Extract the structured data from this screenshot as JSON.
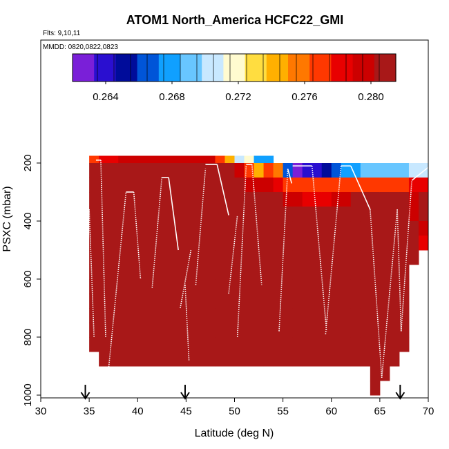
{
  "chart_data": {
    "type": "heatmap",
    "title": "ATOM1 North_America HCFC22_GMI",
    "flights_label": "Flts: 9,10,11",
    "dates_label": "MMDD: 0820,0822,0823",
    "xlabel": "Latitude (deg N)",
    "ylabel": "PSXC (mbar)",
    "xlim": [
      30,
      70
    ],
    "ylim": [
      1000,
      0
    ],
    "x_ticks": [
      "30",
      "35",
      "40",
      "45",
      "50",
      "55",
      "60",
      "65",
      "70"
    ],
    "y_ticks": [
      "200",
      "400",
      "600",
      "800",
      "1000"
    ],
    "colorbar": {
      "range": [
        0.262,
        0.2815
      ],
      "tick_labels": [
        "0.264",
        "0.268",
        "0.272",
        "0.276",
        "0.280"
      ],
      "tick_values": [
        0.264,
        0.268,
        0.272,
        0.276,
        0.28
      ],
      "palette": [
        "#7a1fd8",
        "#2a0fd0",
        "#000c9a",
        "#0055d8",
        "#10a0ff",
        "#68c6ff",
        "#c8e8ff",
        "#fffbd0",
        "#ffdd40",
        "#ffb000",
        "#ff7800",
        "#ff3800",
        "#e80000",
        "#cc0000",
        "#a81818"
      ]
    },
    "grid_pressure_edges": [
      175,
      200,
      250,
      300,
      350,
      400,
      450,
      500,
      550,
      600,
      650,
      700,
      750,
      800,
      850,
      900,
      950,
      1000
    ],
    "bins": [
      {
        "lat": [
          35,
          36
        ],
        "values": [
          0.2775,
          0.2805,
          0.2805,
          0.2805,
          0.2805,
          0.281,
          0.281,
          0.281,
          0.281,
          0.2812,
          0.2812,
          0.2812,
          0.2812,
          0.2812,
          null,
          null,
          null
        ]
      },
      {
        "lat": [
          36,
          38
        ],
        "values": [
          0.2785,
          0.2805,
          0.2805,
          0.2805,
          0.2805,
          0.281,
          0.281,
          0.281,
          0.281,
          0.2812,
          0.2812,
          0.2812,
          0.2812,
          0.2812,
          0.2812,
          null,
          null
        ]
      },
      {
        "lat": [
          38,
          48
        ],
        "values": [
          0.2795,
          0.2805,
          0.2805,
          0.2805,
          0.2805,
          0.2808,
          0.281,
          0.281,
          0.281,
          0.2812,
          0.2812,
          0.2812,
          0.2812,
          0.2812,
          0.2812,
          null,
          null
        ]
      },
      {
        "lat": [
          48,
          49
        ],
        "values": [
          0.2772,
          0.2805,
          0.2805,
          0.2805,
          0.2805,
          0.2808,
          0.281,
          0.281,
          0.281,
          0.2812,
          0.2812,
          0.2812,
          0.2812,
          0.2812,
          0.2812,
          null,
          null
        ]
      },
      {
        "lat": [
          49,
          50
        ],
        "values": [
          0.2745,
          0.2805,
          0.2805,
          0.2805,
          0.2805,
          0.2808,
          0.281,
          0.281,
          0.281,
          0.2812,
          0.2812,
          0.2812,
          0.2812,
          0.2812,
          0.2812,
          null,
          null
        ]
      },
      {
        "lat": [
          50,
          51
        ],
        "values": [
          0.2705,
          0.279,
          0.2805,
          0.2805,
          0.2805,
          0.2808,
          0.281,
          0.281,
          0.281,
          0.2812,
          0.2812,
          0.2812,
          0.2812,
          0.2812,
          0.2812,
          null,
          null
        ]
      },
      {
        "lat": [
          51,
          52
        ],
        "values": [
          0.2715,
          0.2775,
          0.2795,
          0.2805,
          0.2805,
          0.2808,
          0.281,
          0.281,
          0.281,
          0.2812,
          0.2812,
          0.2812,
          0.2812,
          0.2812,
          0.2812,
          null,
          null
        ]
      },
      {
        "lat": [
          52,
          53
        ],
        "values": [
          0.268,
          0.2745,
          0.279,
          0.2805,
          0.2805,
          0.2808,
          0.281,
          0.281,
          0.281,
          0.2812,
          0.2812,
          0.2812,
          0.2812,
          0.2812,
          0.2812,
          null,
          null
        ]
      },
      {
        "lat": [
          53,
          54
        ],
        "values": [
          0.2675,
          0.2765,
          0.279,
          0.2805,
          0.2805,
          0.2808,
          0.281,
          0.281,
          0.281,
          0.2812,
          0.2812,
          0.2812,
          0.2812,
          0.2812,
          0.2812,
          null,
          null
        ]
      },
      {
        "lat": [
          54,
          55
        ],
        "values": [
          null,
          0.2755,
          0.2785,
          0.2805,
          0.2805,
          0.2808,
          0.281,
          0.281,
          0.281,
          0.2812,
          0.2812,
          0.2812,
          0.2812,
          0.2812,
          0.2812,
          null,
          null
        ]
      },
      {
        "lat": [
          55,
          56
        ],
        "values": [
          null,
          0.2665,
          0.2775,
          0.279,
          0.2805,
          0.2808,
          0.281,
          0.281,
          0.281,
          0.2812,
          0.2812,
          0.2812,
          0.2812,
          0.2812,
          0.2812,
          null,
          null
        ]
      },
      {
        "lat": [
          56,
          57
        ],
        "values": [
          null,
          0.2625,
          0.2772,
          0.279,
          0.2805,
          0.2808,
          0.281,
          0.281,
          0.281,
          0.2812,
          0.2812,
          0.2812,
          0.2812,
          0.2812,
          0.2812,
          null,
          null
        ]
      },
      {
        "lat": [
          57,
          58
        ],
        "values": [
          null,
          0.2635,
          0.2772,
          0.2785,
          0.2805,
          0.2808,
          0.281,
          0.281,
          0.281,
          0.2812,
          0.2812,
          0.2812,
          0.2812,
          0.2812,
          0.2812,
          null,
          null
        ]
      },
      {
        "lat": [
          58,
          59
        ],
        "values": [
          null,
          0.2642,
          0.2772,
          0.2785,
          0.2805,
          0.2808,
          0.281,
          0.281,
          0.281,
          0.2812,
          0.2812,
          0.2812,
          0.2812,
          0.2812,
          0.2812,
          null,
          null
        ]
      },
      {
        "lat": [
          59,
          60
        ],
        "values": [
          null,
          0.2655,
          0.2772,
          0.2785,
          0.2805,
          0.2808,
          0.281,
          0.281,
          0.281,
          0.2812,
          0.2812,
          0.2812,
          0.2812,
          0.2812,
          0.2812,
          null,
          null
        ]
      },
      {
        "lat": [
          60,
          61
        ],
        "values": [
          null,
          0.2665,
          0.2772,
          0.279,
          0.2805,
          0.2808,
          0.281,
          0.281,
          0.281,
          0.2812,
          0.2812,
          0.2812,
          0.2812,
          0.2812,
          0.2812,
          null,
          null
        ]
      },
      {
        "lat": [
          61,
          62
        ],
        "values": [
          null,
          0.2675,
          0.2772,
          0.2795,
          0.2812,
          0.2812,
          0.281,
          0.281,
          0.281,
          0.2812,
          0.2812,
          0.2812,
          0.2812,
          0.2812,
          0.2812,
          null,
          null
        ]
      },
      {
        "lat": [
          62,
          63
        ],
        "values": [
          null,
          0.268,
          0.2772,
          0.2812,
          0.2812,
          0.2812,
          0.281,
          0.281,
          0.281,
          0.2812,
          0.2812,
          0.2812,
          0.2812,
          0.2812,
          0.2812,
          null,
          null
        ]
      },
      {
        "lat": [
          63,
          64
        ],
        "values": [
          null,
          0.2685,
          0.2772,
          0.2812,
          0.2812,
          0.2812,
          0.281,
          0.281,
          0.281,
          0.2812,
          0.2812,
          0.2812,
          0.2812,
          0.2812,
          0.2812,
          null,
          null
        ]
      },
      {
        "lat": [
          64,
          65
        ],
        "values": [
          null,
          0.269,
          0.2772,
          0.2812,
          0.2812,
          0.2812,
          0.281,
          0.281,
          0.281,
          0.2812,
          0.2812,
          0.2812,
          0.2812,
          0.2812,
          0.2812,
          0.2812,
          0.2812
        ]
      },
      {
        "lat": [
          65,
          66
        ],
        "values": [
          null,
          0.2692,
          0.2772,
          0.2812,
          0.2812,
          0.2812,
          0.281,
          0.281,
          0.281,
          0.2812,
          0.2812,
          0.2812,
          0.2812,
          0.2812,
          0.2812,
          0.2812,
          null
        ]
      },
      {
        "lat": [
          66,
          67
        ],
        "values": [
          null,
          0.2695,
          0.2772,
          0.2812,
          0.2812,
          0.2812,
          0.281,
          0.281,
          0.281,
          0.2812,
          0.2812,
          0.2812,
          0.2812,
          0.2812,
          0.2812,
          null,
          null
        ]
      },
      {
        "lat": [
          67,
          68
        ],
        "values": [
          null,
          0.2698,
          0.2775,
          0.2808,
          0.2805,
          0.2808,
          0.281,
          0.281,
          0.281,
          0.2812,
          0.2812,
          0.2812,
          0.2812,
          0.2812,
          null,
          null,
          null
        ]
      },
      {
        "lat": [
          68,
          69
        ],
        "values": [
          null,
          0.27,
          0.2778,
          0.2792,
          0.279,
          0.2805,
          0.281,
          0.2805,
          null,
          null,
          null,
          null,
          null,
          null,
          null,
          null,
          null
        ]
      },
      {
        "lat": [
          69,
          70
        ],
        "values": [
          null,
          0.2705,
          0.2782,
          0.2805,
          0.2805,
          0.2795,
          0.2782,
          null,
          null,
          null,
          null,
          null,
          null,
          null,
          null,
          null,
          null
        ]
      }
    ],
    "flight_track_profiles": [
      {
        "lat_range": [
          34.8,
          35.0
        ],
        "p_range": [
          620,
          360
        ]
      },
      {
        "lat_range": [
          35.0,
          35.5
        ],
        "p_range": [
          360,
          800
        ]
      },
      {
        "lat_range": [
          35.7,
          36.2
        ],
        "p_range": [
          190,
          190
        ]
      },
      {
        "lat_range": [
          36.2,
          36.7
        ],
        "p_range": [
          190,
          800
        ]
      },
      {
        "lat_range": [
          37.0,
          38.8
        ],
        "p_range": [
          910,
          300
        ]
      },
      {
        "lat_range": [
          38.8,
          39.6
        ],
        "p_range": [
          300,
          300
        ]
      },
      {
        "lat_range": [
          39.6,
          40.3
        ],
        "p_range": [
          300,
          600
        ]
      },
      {
        "lat_range": [
          41.5,
          42.5
        ],
        "p_range": [
          630,
          250
        ]
      },
      {
        "lat_range": [
          42.5,
          43.2
        ],
        "p_range": [
          250,
          250
        ]
      },
      {
        "lat_range": [
          43.2,
          44.2
        ],
        "p_range": [
          250,
          500
        ]
      },
      {
        "lat_range": [
          44.4,
          45.5
        ],
        "p_range": [
          700,
          500
        ]
      },
      {
        "lat_range": [
          44.9,
          45.3
        ],
        "p_range": [
          620,
          880
        ]
      },
      {
        "lat_range": [
          46.0,
          47.0
        ],
        "p_range": [
          620,
          220
        ]
      },
      {
        "lat_range": [
          47.0,
          48.2
        ],
        "p_range": [
          205,
          205
        ]
      },
      {
        "lat_range": [
          48.2,
          49.4
        ],
        "p_range": [
          205,
          380
        ]
      },
      {
        "lat_range": [
          49.4,
          50.3
        ],
        "p_range": [
          650,
          380
        ]
      },
      {
        "lat_range": [
          50.3,
          51.2
        ],
        "p_range": [
          800,
          210
        ]
      },
      {
        "lat_range": [
          51.2,
          51.8
        ],
        "p_range": [
          205,
          205
        ]
      },
      {
        "lat_range": [
          51.8,
          52.8
        ],
        "p_range": [
          205,
          620
        ]
      },
      {
        "lat_range": [
          54.6,
          55.5
        ],
        "p_range": [
          780,
          220
        ]
      },
      {
        "lat_range": [
          55.5,
          55.9
        ],
        "p_range": [
          220,
          270
        ]
      },
      {
        "lat_range": [
          56.0,
          58.0
        ],
        "p_range": [
          210,
          210
        ]
      },
      {
        "lat_range": [
          58.0,
          59.5
        ],
        "p_range": [
          210,
          780
        ]
      },
      {
        "lat_range": [
          59.4,
          61.0
        ],
        "p_range": [
          790,
          210
        ]
      },
      {
        "lat_range": [
          61.0,
          62.0
        ],
        "p_range": [
          210,
          210
        ]
      },
      {
        "lat_range": [
          62.0,
          64.0
        ],
        "p_range": [
          210,
          360
        ]
      },
      {
        "lat_range": [
          64.0,
          65.2
        ],
        "p_range": [
          360,
          940
        ]
      },
      {
        "lat_range": [
          65.2,
          66.8
        ],
        "p_range": [
          940,
          360
        ]
      },
      {
        "lat_range": [
          66.8,
          67.2
        ],
        "p_range": [
          360,
          780
        ]
      },
      {
        "lat_range": [
          67.2,
          68.3
        ],
        "p_range": [
          780,
          260
        ]
      },
      {
        "lat_range": [
          68.3,
          70.0
        ],
        "p_range": [
          260,
          215
        ]
      }
    ],
    "markers": [
      {
        "lat": 34.6,
        "label": "arrow"
      },
      {
        "lat": 44.9,
        "label": "arrow"
      },
      {
        "lat": 67.1,
        "label": "arrow"
      }
    ]
  }
}
